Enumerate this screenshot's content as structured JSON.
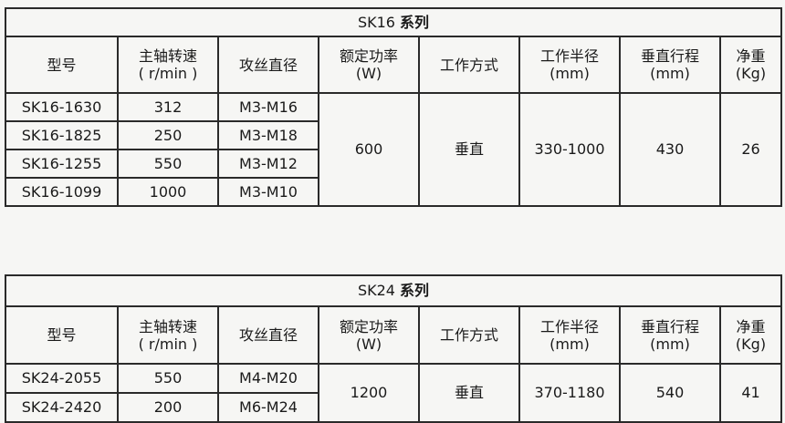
{
  "headers": [
    "型号",
    "主轴转速",
    "( r/min )",
    "攻丝直径",
    "额定功率",
    "(W)",
    "工作方式",
    "工作半径",
    "(mm)",
    "垂直行程",
    "(mm)",
    "净重",
    "(Kg)"
  ],
  "tables": [
    {
      "model": "SK16",
      "series_label": "系列",
      "rows": [
        {
          "model": "SK16-1630",
          "speed": "312",
          "tap": "M3-M16"
        },
        {
          "model": "SK16-1825",
          "speed": "250",
          "tap": "M3-M18"
        },
        {
          "model": "SK16-1255",
          "speed": "550",
          "tap": "M3-M12"
        },
        {
          "model": "SK16-1099",
          "speed": "1000",
          "tap": "M3-M10"
        }
      ],
      "power": "600",
      "mode": "垂直",
      "radius": "330-1000",
      "stroke": "430",
      "weight": "26"
    },
    {
      "model": "SK24",
      "series_label": "系列",
      "rows": [
        {
          "model": "SK24-2055",
          "speed": "550",
          "tap": "M4-M20"
        },
        {
          "model": "SK24-2420",
          "speed": "200",
          "tap": "M6-M24"
        }
      ],
      "power": "1200",
      "mode": "垂直",
      "radius": "370-1180",
      "stroke": "540",
      "weight": "41"
    }
  ]
}
